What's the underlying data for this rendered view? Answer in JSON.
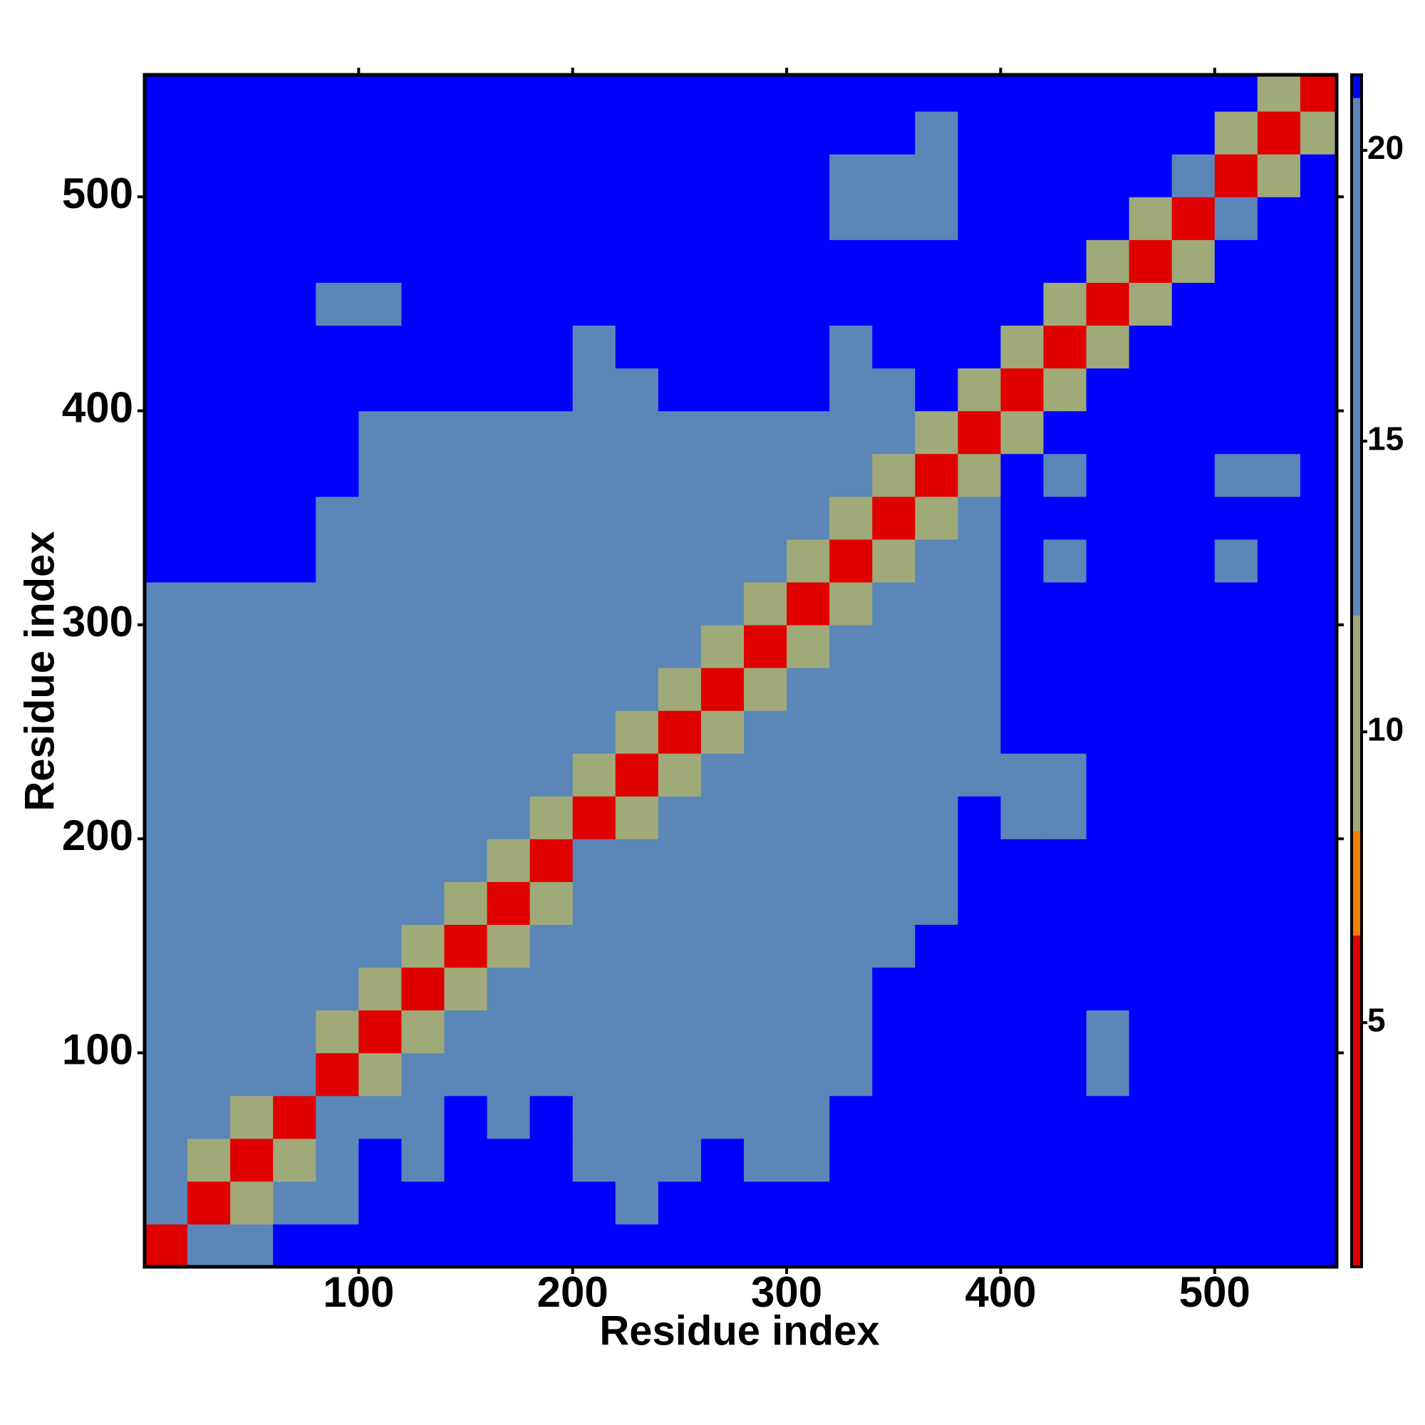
{
  "chart_data": {
    "type": "heatmap",
    "xlabel": "Residue index",
    "ylabel": "Residue index",
    "x": [
      10,
      30,
      50,
      70,
      90,
      110,
      130,
      150,
      170,
      190,
      210,
      230,
      250,
      270,
      290,
      310,
      330,
      350,
      370,
      390,
      410,
      430,
      450,
      470,
      490,
      510,
      530,
      550
    ],
    "y": [
      10,
      30,
      50,
      70,
      90,
      110,
      130,
      150,
      170,
      190,
      210,
      230,
      250,
      270,
      290,
      310,
      330,
      350,
      370,
      390,
      410,
      430,
      450,
      470,
      490,
      510,
      530,
      550
    ],
    "z": [
      [
        3,
        13,
        17,
        21,
        21,
        21,
        21,
        21,
        21,
        21,
        21,
        21,
        21,
        21,
        21,
        21,
        21,
        21,
        21,
        21,
        21,
        21,
        21,
        21,
        21,
        21,
        21,
        21
      ],
      [
        13,
        3,
        10,
        13,
        17,
        21,
        21,
        21,
        21,
        21,
        21,
        17,
        21,
        21,
        21,
        21,
        21,
        21,
        21,
        21,
        21,
        21,
        21,
        21,
        21,
        21,
        21,
        21
      ],
      [
        13,
        10,
        3,
        10,
        17,
        21,
        17,
        21,
        21,
        21,
        17,
        17,
        17,
        21,
        17,
        17,
        21,
        21,
        21,
        21,
        21,
        21,
        21,
        21,
        21,
        21,
        21,
        21
      ],
      [
        13,
        13,
        10,
        3,
        17,
        17,
        17,
        21,
        17,
        21,
        17,
        17,
        17,
        17,
        17,
        17,
        21,
        21,
        21,
        21,
        21,
        21,
        21,
        21,
        21,
        21,
        21,
        21
      ],
      [
        17,
        17,
        17,
        17,
        3,
        10,
        13,
        17,
        17,
        17,
        17,
        17,
        17,
        17,
        17,
        17,
        17,
        21,
        21,
        21,
        21,
        21,
        17,
        21,
        21,
        21,
        21,
        21
      ],
      [
        17,
        17,
        17,
        17,
        10,
        3,
        10,
        13,
        17,
        17,
        17,
        17,
        17,
        17,
        17,
        17,
        17,
        21,
        21,
        21,
        21,
        21,
        17,
        21,
        21,
        21,
        21,
        21
      ],
      [
        17,
        17,
        17,
        17,
        13,
        10,
        3,
        10,
        17,
        17,
        17,
        17,
        17,
        17,
        17,
        17,
        17,
        21,
        21,
        21,
        21,
        21,
        21,
        21,
        21,
        21,
        21,
        21
      ],
      [
        17,
        17,
        17,
        17,
        17,
        13,
        10,
        3,
        10,
        17,
        17,
        17,
        17,
        17,
        17,
        17,
        17,
        17,
        21,
        21,
        21,
        21,
        21,
        21,
        21,
        21,
        21,
        21
      ],
      [
        17,
        17,
        17,
        17,
        17,
        17,
        17,
        10,
        3,
        10,
        17,
        17,
        17,
        17,
        17,
        17,
        13,
        17,
        17,
        21,
        21,
        21,
        21,
        21,
        21,
        21,
        21,
        21
      ],
      [
        17,
        17,
        17,
        17,
        17,
        17,
        17,
        17,
        10,
        3,
        13,
        13,
        17,
        17,
        13,
        13,
        13,
        17,
        17,
        21,
        21,
        21,
        21,
        21,
        21,
        21,
        21,
        21
      ],
      [
        17,
        17,
        17,
        17,
        17,
        17,
        17,
        17,
        13,
        10,
        3,
        10,
        17,
        17,
        17,
        17,
        17,
        17,
        17,
        21,
        17,
        17,
        21,
        21,
        21,
        21,
        21,
        21
      ],
      [
        17,
        17,
        17,
        17,
        17,
        17,
        17,
        17,
        13,
        13,
        10,
        3,
        10,
        13,
        13,
        17,
        17,
        17,
        13,
        17,
        17,
        17,
        21,
        21,
        21,
        21,
        21,
        21
      ],
      [
        17,
        17,
        17,
        17,
        17,
        17,
        17,
        17,
        17,
        17,
        13,
        10,
        3,
        10,
        17,
        17,
        17,
        17,
        13,
        17,
        21,
        21,
        21,
        21,
        21,
        21,
        21,
        21
      ],
      [
        17,
        17,
        17,
        17,
        17,
        17,
        17,
        17,
        17,
        13,
        13,
        17,
        10,
        3,
        10,
        13,
        17,
        17,
        17,
        17,
        21,
        21,
        21,
        21,
        21,
        21,
        21,
        21
      ],
      [
        17,
        17,
        17,
        17,
        17,
        17,
        17,
        17,
        13,
        13,
        17,
        13,
        17,
        10,
        3,
        10,
        13,
        17,
        17,
        17,
        21,
        21,
        21,
        21,
        21,
        21,
        21,
        21
      ],
      [
        17,
        17,
        17,
        17,
        17,
        17,
        17,
        17,
        17,
        17,
        17,
        17,
        17,
        13,
        10,
        3,
        10,
        17,
        17,
        17,
        21,
        21,
        21,
        21,
        21,
        21,
        21,
        21
      ],
      [
        21,
        21,
        21,
        21,
        17,
        17,
        17,
        13,
        17,
        17,
        17,
        17,
        17,
        17,
        13,
        10,
        3,
        10,
        13,
        17,
        21,
        17,
        21,
        21,
        21,
        17,
        21,
        21
      ],
      [
        21,
        21,
        21,
        21,
        17,
        17,
        17,
        17,
        17,
        17,
        17,
        17,
        17,
        17,
        17,
        17,
        10,
        3,
        10,
        17,
        21,
        21,
        21,
        21,
        21,
        21,
        21,
        21
      ],
      [
        21,
        21,
        21,
        21,
        21,
        17,
        17,
        17,
        13,
        17,
        17,
        13,
        17,
        17,
        17,
        13,
        17,
        10,
        3,
        10,
        21,
        17,
        21,
        21,
        21,
        17,
        17,
        21
      ],
      [
        21,
        21,
        21,
        21,
        21,
        17,
        17,
        17,
        17,
        17,
        17,
        17,
        17,
        17,
        17,
        17,
        17,
        17,
        10,
        3,
        10,
        21,
        21,
        21,
        21,
        21,
        21,
        21
      ],
      [
        21,
        21,
        21,
        21,
        21,
        21,
        21,
        21,
        21,
        21,
        17,
        17,
        21,
        21,
        21,
        21,
        17,
        17,
        21,
        10,
        3,
        10,
        21,
        21,
        21,
        21,
        21,
        21
      ],
      [
        21,
        21,
        21,
        21,
        21,
        21,
        21,
        21,
        21,
        21,
        17,
        21,
        21,
        21,
        21,
        21,
        17,
        21,
        21,
        21,
        10,
        3,
        10,
        21,
        21,
        21,
        21,
        21
      ],
      [
        21,
        21,
        21,
        21,
        17,
        17,
        21,
        21,
        21,
        21,
        21,
        21,
        21,
        21,
        21,
        21,
        21,
        21,
        21,
        21,
        21,
        10,
        3,
        10,
        21,
        21,
        21,
        21
      ],
      [
        21,
        21,
        21,
        21,
        21,
        21,
        21,
        21,
        21,
        21,
        21,
        21,
        21,
        21,
        21,
        21,
        21,
        21,
        21,
        21,
        21,
        21,
        10,
        3,
        10,
        21,
        21,
        21
      ],
      [
        21,
        21,
        21,
        21,
        21,
        21,
        21,
        21,
        21,
        21,
        21,
        21,
        21,
        21,
        21,
        21,
        17,
        17,
        13,
        21,
        21,
        21,
        21,
        10,
        3,
        13,
        21,
        21
      ],
      [
        21,
        21,
        21,
        21,
        21,
        21,
        21,
        21,
        21,
        21,
        21,
        21,
        21,
        21,
        21,
        21,
        17,
        17,
        13,
        21,
        21,
        21,
        21,
        21,
        13,
        3,
        10,
        21
      ],
      [
        21,
        21,
        21,
        21,
        21,
        21,
        21,
        21,
        21,
        21,
        21,
        21,
        21,
        21,
        21,
        21,
        21,
        21,
        17,
        21,
        21,
        21,
        21,
        21,
        21,
        10,
        3,
        10
      ],
      [
        21,
        21,
        21,
        21,
        21,
        21,
        21,
        21,
        21,
        21,
        21,
        21,
        21,
        21,
        21,
        21,
        21,
        21,
        21,
        21,
        21,
        21,
        21,
        21,
        21,
        21,
        10,
        3
      ]
    ],
    "cell_size": 20,
    "xlim": [
      0,
      557
    ],
    "ylim": [
      0,
      557
    ],
    "xticks": [
      100,
      200,
      300,
      400,
      500
    ],
    "yticks": [
      100,
      200,
      300,
      400,
      500
    ],
    "colorscale": [
      {
        "value": 0.8,
        "color": "#e00000"
      },
      {
        "value": 6.5,
        "color": "#f08000"
      },
      {
        "value": 8.3,
        "color": "#a0aa78"
      },
      {
        "value": 12,
        "color": "#5b87b8"
      },
      {
        "value": 20.9,
        "color": "#0000ff"
      }
    ],
    "colorbar_lim": [
      0.8,
      21.3
    ],
    "colorbar_ticks": [
      5,
      10,
      15,
      20
    ]
  }
}
